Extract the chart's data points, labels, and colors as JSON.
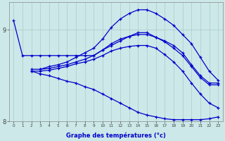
{
  "xlabel": "Graphe des températures (°c)",
  "background_color": "#cce8e8",
  "line_color": "#0000cc",
  "grid_color": "#aacccc",
  "ylim": [
    8.35,
    9.3
  ],
  "yticks": [
    8,
    9
  ],
  "ytick_labels": [
    "8",
    "9"
  ],
  "xlim": [
    -0.5,
    23.5
  ],
  "xticks": [
    0,
    1,
    2,
    3,
    4,
    5,
    6,
    7,
    8,
    9,
    10,
    11,
    12,
    13,
    14,
    15,
    16,
    17,
    18,
    19,
    20,
    21,
    22,
    23
  ],
  "curve1_x": [
    0,
    1,
    2,
    3,
    4,
    5,
    6,
    7,
    8,
    9,
    10,
    11,
    12,
    13,
    14,
    15,
    16,
    17,
    18,
    19,
    20,
    21,
    22,
    23
  ],
  "curve1_y": [
    9.1,
    8.72,
    8.72,
    8.72,
    8.72,
    8.72,
    8.72,
    8.72,
    8.72,
    8.72,
    8.78,
    8.83,
    8.88,
    8.93,
    8.97,
    8.97,
    8.92,
    8.88,
    8.83,
    8.75,
    8.62,
    8.5,
    8.42,
    8.42
  ],
  "curve2_x": [
    3,
    4,
    5,
    6,
    7,
    8,
    9,
    10,
    11,
    12,
    13,
    14,
    15,
    16,
    17,
    18,
    19,
    20,
    21,
    22,
    23
  ],
  "curve2_y": [
    8.57,
    8.6,
    8.62,
    8.65,
    8.7,
    8.75,
    8.8,
    8.9,
    9.03,
    9.12,
    9.18,
    9.22,
    9.22,
    9.18,
    9.12,
    9.05,
    8.95,
    8.85,
    8.7,
    8.55,
    8.45
  ],
  "curve3_x": [
    2,
    3,
    4,
    5,
    6,
    7,
    8,
    9,
    10,
    11,
    12,
    13,
    14,
    15,
    16,
    17,
    18,
    19,
    20,
    21,
    22,
    23
  ],
  "curve3_y": [
    8.57,
    8.57,
    8.58,
    8.6,
    8.62,
    8.65,
    8.68,
    8.72,
    8.78,
    8.85,
    8.9,
    8.93,
    8.95,
    8.95,
    8.92,
    8.87,
    8.8,
    8.72,
    8.6,
    8.48,
    8.4,
    8.4
  ],
  "curve4_x": [
    2,
    3,
    4,
    5,
    6,
    7,
    8,
    9,
    10,
    11,
    12,
    13,
    14,
    15,
    16,
    17,
    18,
    19,
    20,
    21,
    22,
    23
  ],
  "curve4_y": [
    8.55,
    8.55,
    8.56,
    8.58,
    8.6,
    8.63,
    8.65,
    8.68,
    8.72,
    8.77,
    8.8,
    8.82,
    8.83,
    8.83,
    8.8,
    8.73,
    8.65,
    8.55,
    8.42,
    8.3,
    8.2,
    8.15
  ],
  "curve5_x": [
    2,
    3,
    4,
    5,
    6,
    7,
    8,
    9,
    10,
    11,
    12,
    13,
    14,
    15,
    16,
    17,
    18,
    19,
    20,
    21,
    22,
    23
  ],
  "curve5_y": [
    8.55,
    8.52,
    8.5,
    8.47,
    8.44,
    8.42,
    8.38,
    8.35,
    8.3,
    8.25,
    8.2,
    8.15,
    8.1,
    8.07,
    8.05,
    8.03,
    8.02,
    8.02,
    8.02,
    8.02,
    8.03,
    8.05
  ]
}
